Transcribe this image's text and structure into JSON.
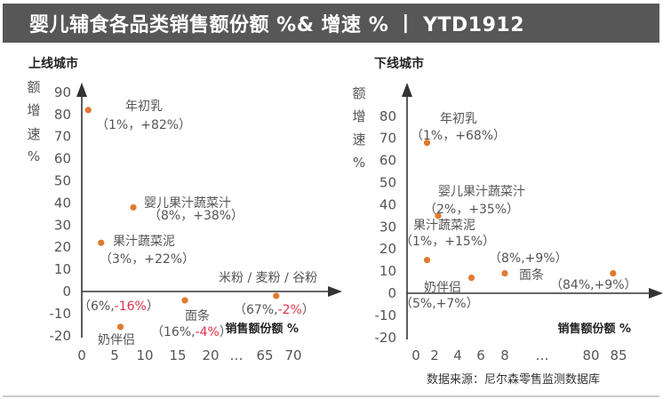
{
  "title": "婴儿辅食各品类销售额份额 %& 增速 % 丨 YTD1912",
  "source": "数据来源：尼尔森零售监测数据库",
  "colors": {
    "title_bg": "#575757",
    "point": "#E07A2F",
    "negative": "#E0334C",
    "label": "#555555",
    "axis": "#333333"
  },
  "chart_data": [
    {
      "type": "scatter",
      "panel_title": "上线城市",
      "xlabel": "销售额份额 %",
      "ylabel": "额 增 速 %",
      "xticks": [
        "0",
        "5",
        "10",
        "15",
        "20",
        "…",
        "65",
        "70"
      ],
      "yticks": [
        90,
        80,
        70,
        60,
        50,
        40,
        30,
        20,
        10,
        0,
        -10,
        -20
      ],
      "ylim": [
        -20,
        90
      ],
      "points": [
        {
          "name": "年初乳",
          "x": 1,
          "y": 82,
          "value_label": "（1%，+82%）"
        },
        {
          "name": "婴儿果汁蔬菜汁",
          "x": 8,
          "y": 38,
          "value_label": "（8%，+38%）"
        },
        {
          "name": "果汁蔬菜泥",
          "x": 3,
          "y": 22,
          "value_label": "（3%，+22%）"
        },
        {
          "name": "奶伴侣",
          "x": 6,
          "y": -16,
          "value_label_prefix": "（6%,",
          "value_label_neg": "-16%",
          "value_label_suffix": "）"
        },
        {
          "name": "面条",
          "x": 16,
          "y": -4,
          "value_label_prefix": "（16%,",
          "value_label_neg": "-4%",
          "value_label_suffix": "）"
        },
        {
          "name": "米粉 / 麦粉 / 谷粉",
          "x": 67,
          "y": -2,
          "value_label_prefix": "（67%,",
          "value_label_neg": "-2%",
          "value_label_suffix": "）"
        }
      ]
    },
    {
      "type": "scatter",
      "panel_title": "下线城市",
      "xlabel": "销售额份额 %",
      "ylabel": "额 增 速 %",
      "xticks": [
        "0",
        "2",
        "4",
        "6",
        "8",
        "…",
        "80",
        "85"
      ],
      "yticks": [
        80,
        70,
        60,
        50,
        40,
        30,
        20,
        10,
        0,
        -10,
        -20
      ],
      "ylim": [
        -20,
        80
      ],
      "points": [
        {
          "name": "年初乳",
          "x": 1,
          "y": 68,
          "value_label": "（1%，+68%）"
        },
        {
          "name": "婴儿果汁蔬菜汁",
          "x": 2,
          "y": 35,
          "value_label": "（2%，+35%）"
        },
        {
          "name": "果汁蔬菜泥",
          "x": 1,
          "y": 15,
          "value_label": "（1%，+15%）"
        },
        {
          "name": "奶伴侣",
          "x": 5,
          "y": 7,
          "value_label": "（5%,+7%）"
        },
        {
          "name": "面条",
          "x": 8,
          "y": 9,
          "value_label": "（8%,+9%）"
        },
        {
          "name": "",
          "x": 84,
          "y": 9,
          "value_label": "（84%,+9%）"
        }
      ]
    }
  ]
}
